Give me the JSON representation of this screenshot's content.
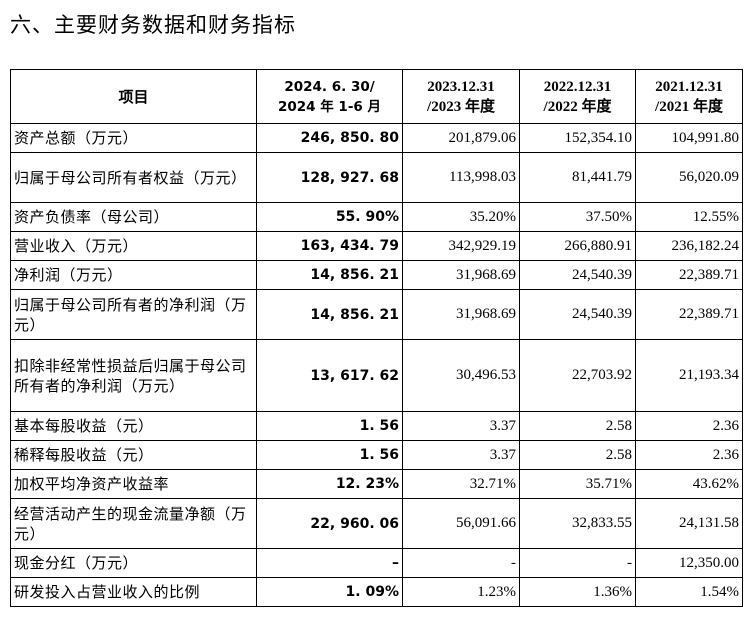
{
  "heading": "六、主要财务数据和财务指标",
  "table": {
    "headers": [
      {
        "lines": [
          "项目"
        ]
      },
      {
        "lines": [
          "2024. 6. 30/",
          "2024 年 1-6 月"
        ]
      },
      {
        "lines": [
          "2023.12.31",
          "/2023 年度"
        ]
      },
      {
        "lines": [
          "2022.12.31",
          "/2022 年度"
        ]
      },
      {
        "lines": [
          "2021.12.31",
          "/2021 年度"
        ]
      }
    ],
    "rows": [
      {
        "item": "资产总额（万元）",
        "values": [
          "246, 850. 80",
          "201,879.06",
          "152,354.10",
          "104,991.80"
        ]
      },
      {
        "item": "归属于母公司所有者权益（万元）",
        "values": [
          "128, 927. 68",
          "113,998.03",
          "81,441.79",
          "56,020.09"
        ]
      },
      {
        "item": "资产负债率（母公司）",
        "values": [
          "55. 90%",
          "35.20%",
          "37.50%",
          "12.55%"
        ]
      },
      {
        "item": "营业收入（万元）",
        "values": [
          "163, 434. 79",
          "342,929.19",
          "266,880.91",
          "236,182.24"
        ]
      },
      {
        "item": "净利润（万元）",
        "values": [
          "14, 856. 21",
          "31,968.69",
          "24,540.39",
          "22,389.71"
        ]
      },
      {
        "item": "归属于母公司所有者的净利润（万元）",
        "values": [
          "14, 856. 21",
          "31,968.69",
          "24,540.39",
          "22,389.71"
        ]
      },
      {
        "item": "扣除非经常性损益后归属于母公司所有者的净利润（万元）",
        "values": [
          "13, 617. 62",
          "30,496.53",
          "22,703.92",
          "21,193.34"
        ]
      },
      {
        "item": "基本每股收益（元）",
        "values": [
          "1. 56",
          "3.37",
          "2.58",
          "2.36"
        ]
      },
      {
        "item": "稀释每股收益（元）",
        "values": [
          "1. 56",
          "3.37",
          "2.58",
          "2.36"
        ]
      },
      {
        "item": "加权平均净资产收益率",
        "values": [
          "12. 23%",
          "32.71%",
          "35.71%",
          "43.62%"
        ]
      },
      {
        "item": "经营活动产生的现金流量净额（万元）",
        "values": [
          "22, 960. 06",
          "56,091.66",
          "32,833.55",
          "24,131.58"
        ]
      },
      {
        "item": "现金分红（万元）",
        "values": [
          "–",
          "-",
          "-",
          "12,350.00"
        ]
      },
      {
        "item": "研发投入占营业收入的比例",
        "values": [
          "1. 09%",
          "1.23%",
          "1.36%",
          "1.54%"
        ]
      }
    ]
  }
}
